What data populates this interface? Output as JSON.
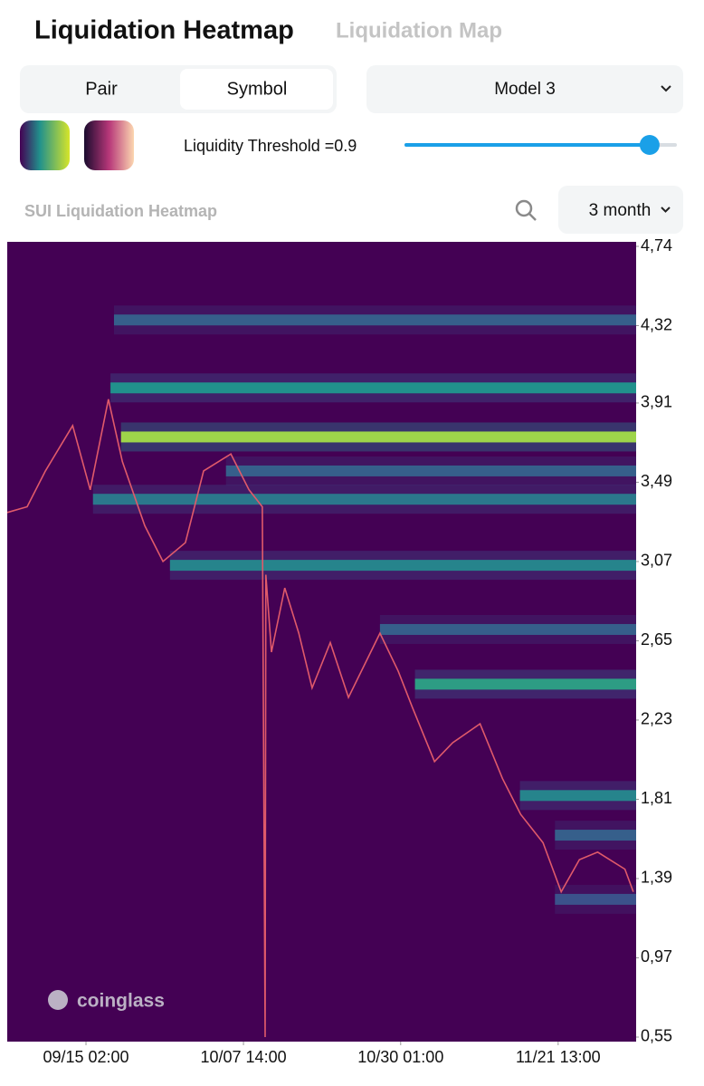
{
  "ui": {
    "tabs": [
      "Liquidation Heatmap",
      "Liquidation Map"
    ],
    "segment": [
      "Pair",
      "Symbol"
    ],
    "model": "Model 3",
    "threshold_label": "Liquidity Threshold =0.9",
    "threshold": 0.9,
    "period": "3 month"
  },
  "chart_data": {
    "type": "heatmap",
    "title": "SUI Liquidation Heatmap",
    "watermark": "coinglass",
    "x": [
      -11.25,
      -8.4,
      -5.8,
      -1.9,
      0.6,
      3.2,
      5.2,
      8.4,
      11.0,
      14.2,
      16.8,
      20.7,
      23.3,
      25.2,
      25.6,
      25.7,
      26.5,
      28.4,
      30.4,
      32.3,
      34.9,
      37.5,
      42.0,
      44.6,
      46.6,
      49.8,
      52.4,
      56.3,
      59.5,
      62.1,
      65.3,
      67.9,
      70.5,
      73.1,
      77.0,
      78.2
    ],
    "values": [
      3.33,
      3.36,
      3.55,
      3.79,
      3.45,
      3.93,
      3.6,
      3.26,
      3.07,
      3.17,
      3.55,
      3.64,
      3.45,
      3.36,
      0.55,
      3.0,
      2.59,
      2.93,
      2.69,
      2.4,
      2.64,
      2.35,
      2.69,
      2.49,
      2.3,
      2.01,
      2.11,
      2.21,
      1.92,
      1.73,
      1.58,
      1.32,
      1.49,
      1.53,
      1.44,
      1.32
    ],
    "color": "#e05a6a",
    "bands": [
      {
        "price": 4.35,
        "start": 4.0,
        "intensity": 0.3
      },
      {
        "price": 3.99,
        "start": 3.5,
        "intensity": 0.5
      },
      {
        "price": 3.73,
        "start": 5.0,
        "intensity": 0.85
      },
      {
        "price": 3.55,
        "start": 20.0,
        "intensity": 0.3
      },
      {
        "price": 3.4,
        "start": 1.0,
        "intensity": 0.4
      },
      {
        "price": 3.05,
        "start": 12.0,
        "intensity": 0.45
      },
      {
        "price": 2.71,
        "start": 42.0,
        "intensity": 0.3
      },
      {
        "price": 2.42,
        "start": 47.0,
        "intensity": 0.55
      },
      {
        "price": 1.83,
        "start": 62.0,
        "intensity": 0.45
      },
      {
        "price": 1.62,
        "start": 67.0,
        "intensity": 0.3
      },
      {
        "price": 1.28,
        "start": 67.0,
        "intensity": 0.25
      }
    ],
    "colormap": [
      "#440154",
      "#3b528b",
      "#21918c",
      "#5ec962",
      "#fde725"
    ],
    "xlim": [
      -11.25,
      78.6
    ],
    "ylim": [
      0.526,
      4.764
    ],
    "xticks": [
      {
        "value": 0,
        "label": "09/15 02:00"
      },
      {
        "value": 22.5,
        "label": "10/07 14:00"
      },
      {
        "value": 44.96,
        "label": "10/30 01:00"
      },
      {
        "value": 67.46,
        "label": "11/21 13:00"
      }
    ],
    "yticks": [
      {
        "value": 4.74,
        "label": "4,74"
      },
      {
        "value": 4.32,
        "label": "4,32"
      },
      {
        "value": 3.91,
        "label": "3,91"
      },
      {
        "value": 3.49,
        "label": "3,49"
      },
      {
        "value": 3.07,
        "label": "3,07"
      },
      {
        "value": 2.65,
        "label": "2,65"
      },
      {
        "value": 2.23,
        "label": "2,23"
      },
      {
        "value": 1.81,
        "label": "1,81"
      },
      {
        "value": 1.39,
        "label": "1,39"
      },
      {
        "value": 0.97,
        "label": "0,97"
      },
      {
        "value": 0.55,
        "label": "0,55"
      }
    ]
  }
}
